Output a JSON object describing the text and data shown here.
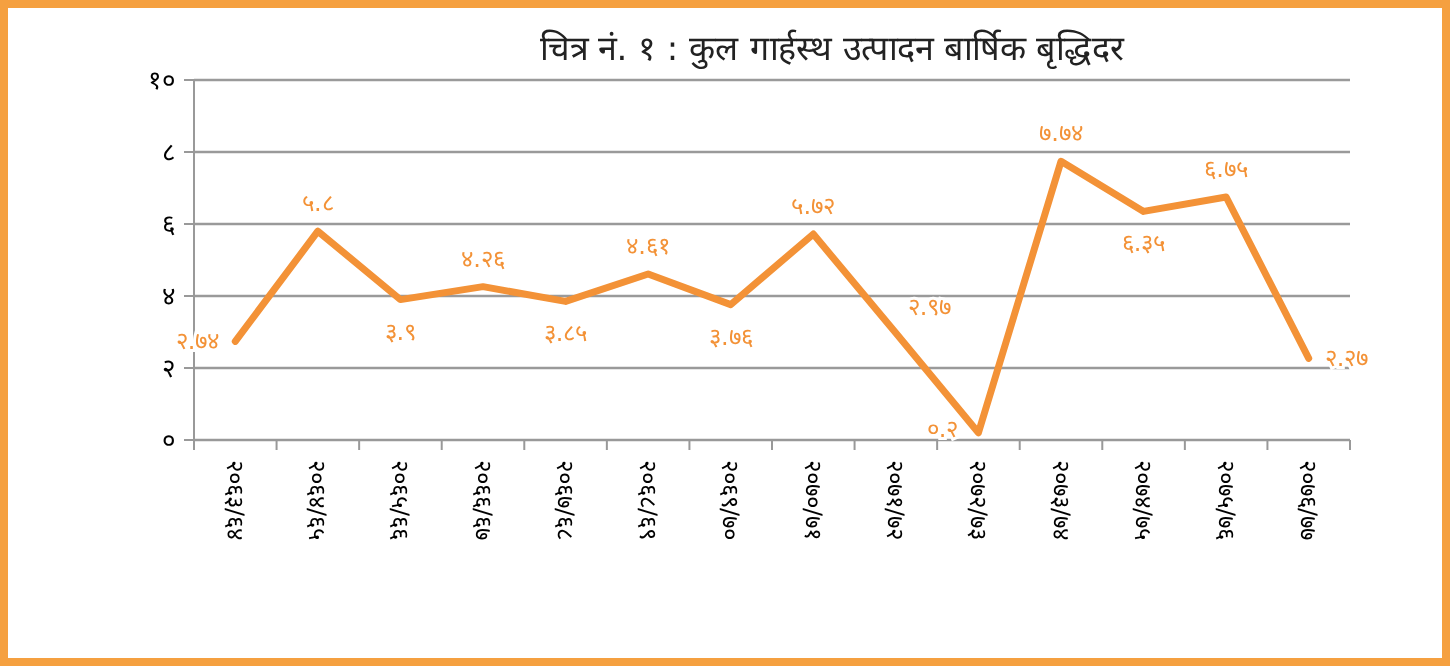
{
  "chart_data": {
    "type": "line",
    "title": "चित्र नं. १ : कुल गार्हस्थ उत्पादन बार्षिक बृद्धिदर",
    "categories": [
      "२०६३/६४",
      "२०६४/६५",
      "२०६५/६६",
      "२०६६/६७",
      "२०६७/६८",
      "२०६८/६९",
      "२०६९/७०",
      "२०७०/७१",
      "२०७१/७२",
      "२०७२/७३",
      "२०७३/७४",
      "२०७४/७५",
      "२०७५/७६",
      "२०७६/७७"
    ],
    "series": [
      {
        "color": "#f39237",
        "values": [
          2.74,
          5.8,
          3.9,
          4.26,
          3.85,
          4.61,
          3.76,
          5.72,
          2.97,
          0.2,
          7.74,
          6.35,
          6.75,
          2.27
        ],
        "value_labels": [
          "२.७४",
          "५.८",
          "३.९",
          "४.२६",
          "३.८५",
          "४.६१",
          "३.७६",
          "५.७२",
          "२.९७",
          "०.२",
          "७.७४",
          "६.३५",
          "६.७५",
          "२.२७"
        ]
      }
    ],
    "ylim": [
      0,
      10
    ],
    "yticks": [
      {
        "value": 0,
        "label": "०"
      },
      {
        "value": 2,
        "label": "२"
      },
      {
        "value": 4,
        "label": "४"
      },
      {
        "value": 6,
        "label": "६"
      },
      {
        "value": 8,
        "label": "८"
      },
      {
        "value": 10,
        "label": "१०"
      }
    ],
    "grid": "y",
    "marker": "none",
    "line_style": "solid"
  }
}
